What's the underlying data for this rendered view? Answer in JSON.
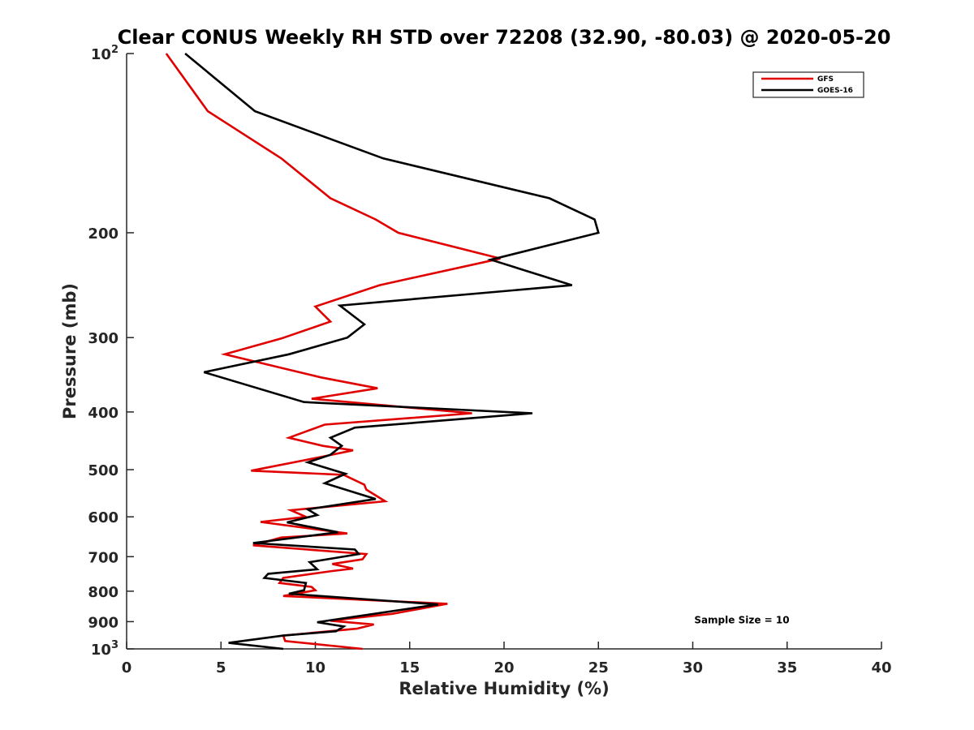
{
  "chart_data": {
    "type": "line",
    "title": "Clear CONUS Weekly RH STD over 72208 (32.90, -80.03) @ 2020-05-20",
    "xlabel": "Relative Humidity (%)",
    "ylabel": "Pressure (mb)",
    "xlim": [
      0,
      40
    ],
    "ylim": [
      100,
      1000
    ],
    "y_scale": "log",
    "y_reversed": true,
    "grid": false,
    "legend_position": "top-right",
    "x_ticks": [
      {
        "value": 0,
        "label": "0"
      },
      {
        "value": 5,
        "label": "5"
      },
      {
        "value": 10,
        "label": "10"
      },
      {
        "value": 15,
        "label": "15"
      },
      {
        "value": 20,
        "label": "20"
      },
      {
        "value": 25,
        "label": "25"
      },
      {
        "value": 30,
        "label": "30"
      },
      {
        "value": 35,
        "label": "35"
      },
      {
        "value": 40,
        "label": "40"
      }
    ],
    "y_ticks": [
      {
        "value": 100,
        "base": "10",
        "exp": "2"
      },
      {
        "value": 200,
        "label": "200"
      },
      {
        "value": 300,
        "label": "300"
      },
      {
        "value": 400,
        "label": "400"
      },
      {
        "value": 500,
        "label": "500"
      },
      {
        "value": 600,
        "label": "600"
      },
      {
        "value": 700,
        "label": "700"
      },
      {
        "value": 800,
        "label": "800"
      },
      {
        "value": 900,
        "label": "900"
      },
      {
        "value": 1000,
        "base": "10",
        "exp": "3"
      }
    ],
    "series": [
      {
        "name": "GFS",
        "color": "#e00000",
        "points": [
          [
            2.1,
            100
          ],
          [
            4.3,
            125
          ],
          [
            8.2,
            150
          ],
          [
            10.8,
            175
          ],
          [
            13.2,
            190
          ],
          [
            14.4,
            200
          ],
          [
            19.8,
            221
          ],
          [
            13.4,
            245
          ],
          [
            10.0,
            266
          ],
          [
            10.8,
            282
          ],
          [
            8.2,
            301
          ],
          [
            5.2,
            320
          ],
          [
            10.3,
            350
          ],
          [
            13.3,
            365
          ],
          [
            9.8,
            380
          ],
          [
            18.3,
            402
          ],
          [
            10.5,
            420
          ],
          [
            8.6,
            442
          ],
          [
            10.4,
            456
          ],
          [
            12.0,
            464
          ],
          [
            10.3,
            476
          ],
          [
            6.6,
            502
          ],
          [
            11.5,
            510
          ],
          [
            12.6,
            530
          ],
          [
            12.7,
            540
          ],
          [
            13.7,
            565
          ],
          [
            8.7,
            585
          ],
          [
            9.5,
            600
          ],
          [
            7.1,
            612
          ],
          [
            11.7,
            640
          ],
          [
            8.2,
            650
          ],
          [
            6.7,
            670
          ],
          [
            12.7,
            693
          ],
          [
            12.5,
            707
          ],
          [
            10.9,
            720
          ],
          [
            12.0,
            733
          ],
          [
            10.9,
            740
          ],
          [
            8.3,
            760
          ],
          [
            8.1,
            775
          ],
          [
            9.8,
            787
          ],
          [
            10.0,
            797
          ],
          [
            8.3,
            815
          ],
          [
            17.0,
            840
          ],
          [
            14.1,
            873
          ],
          [
            10.8,
            897
          ],
          [
            13.1,
            910
          ],
          [
            12.2,
            925
          ],
          [
            8.3,
            950
          ],
          [
            8.4,
            970
          ],
          [
            12.5,
            1000
          ]
        ]
      },
      {
        "name": "GOES-16",
        "color": "#000000",
        "points": [
          [
            3.1,
            100
          ],
          [
            6.8,
            125
          ],
          [
            13.6,
            150
          ],
          [
            22.4,
            175
          ],
          [
            24.8,
            190
          ],
          [
            25.0,
            200
          ],
          [
            19.3,
            222
          ],
          [
            23.6,
            245
          ],
          [
            11.3,
            265
          ],
          [
            12.6,
            285
          ],
          [
            11.7,
            300
          ],
          [
            8.6,
            320
          ],
          [
            4.1,
            343
          ],
          [
            9.4,
            385
          ],
          [
            21.5,
            402
          ],
          [
            12.1,
            425
          ],
          [
            10.8,
            442
          ],
          [
            11.4,
            456
          ],
          [
            10.8,
            472
          ],
          [
            9.6,
            486
          ],
          [
            11.6,
            508
          ],
          [
            10.5,
            527
          ],
          [
            13.2,
            560
          ],
          [
            9.6,
            583
          ],
          [
            10.1,
            596
          ],
          [
            8.5,
            613
          ],
          [
            11.2,
            637
          ],
          [
            6.7,
            664
          ],
          [
            12.1,
            681
          ],
          [
            12.3,
            693
          ],
          [
            9.7,
            715
          ],
          [
            10.1,
            735
          ],
          [
            7.5,
            748
          ],
          [
            7.3,
            760
          ],
          [
            9.5,
            775
          ],
          [
            9.4,
            797
          ],
          [
            8.6,
            808
          ],
          [
            16.5,
            842
          ],
          [
            10.1,
            902
          ],
          [
            11.5,
            917
          ],
          [
            11.1,
            934
          ],
          [
            8.3,
            950
          ],
          [
            5.4,
            977
          ],
          [
            8.3,
            1000
          ]
        ]
      }
    ],
    "annotations": [
      {
        "text": "Sample Size = 10",
        "x": 32.6,
        "y": 906
      }
    ]
  }
}
